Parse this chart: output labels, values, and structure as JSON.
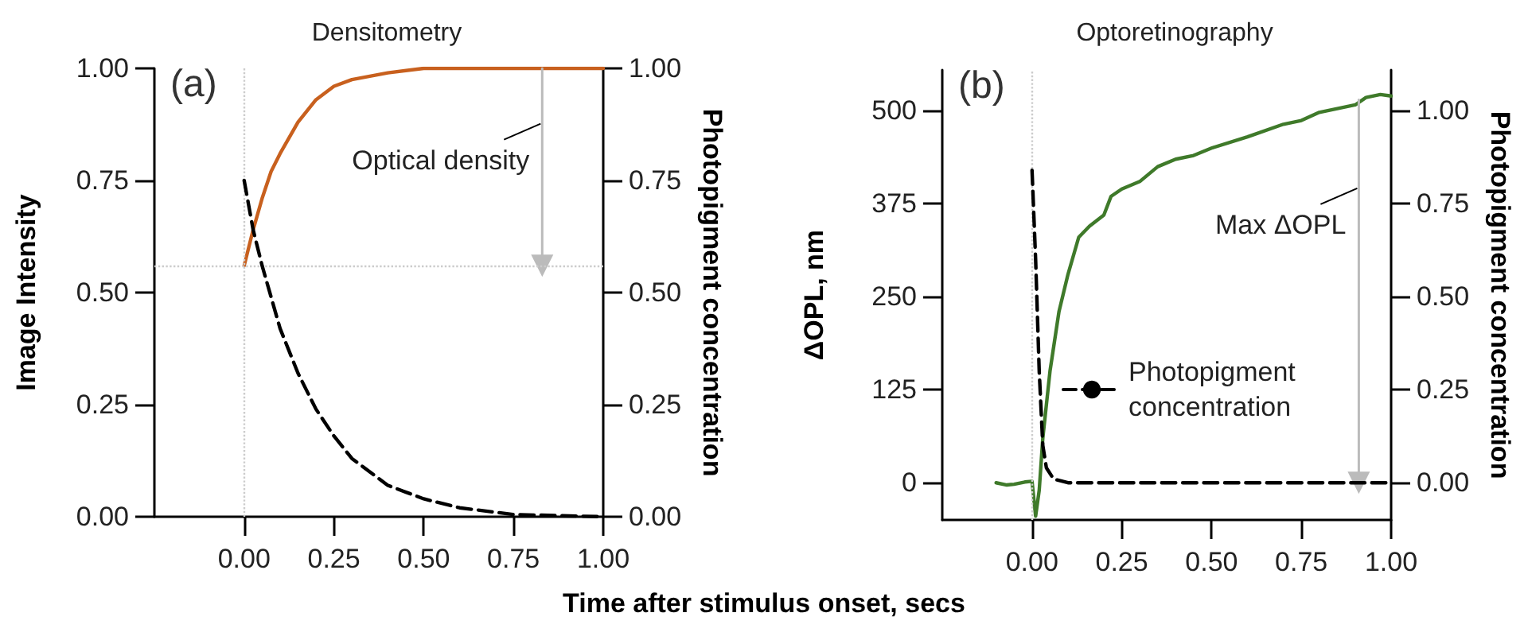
{
  "chart_data": [
    {
      "type": "line",
      "title": "Densitometry",
      "xlabel": "Time after stimulus onset, secs",
      "ylabel": "Image Intensity",
      "y2label": "Photopigment concentration",
      "xlim": [
        -0.25,
        1.0
      ],
      "xticks": [
        {
          "value": 0,
          "label": "0.00"
        },
        {
          "value": 0.25,
          "label": "0.25"
        },
        {
          "value": 0.5,
          "label": "0.50"
        },
        {
          "value": 0.75,
          "label": "0.75"
        },
        {
          "value": 1,
          "label": "1.00"
        }
      ],
      "ylim": [
        0,
        1
      ],
      "yticks": [
        {
          "value": 0,
          "label": "0.00"
        },
        {
          "value": 0.25,
          "label": "0.25"
        },
        {
          "value": 0.5,
          "label": "0.50"
        },
        {
          "value": 0.75,
          "label": "0.75"
        },
        {
          "value": 1,
          "label": "1.00"
        }
      ],
      "y2lim": [
        0,
        1
      ],
      "y2ticks": [
        {
          "value": 0,
          "label": "0.00"
        },
        {
          "value": 0.25,
          "label": "0.25"
        },
        {
          "value": 0.5,
          "label": "0.50"
        },
        {
          "value": 0.75,
          "label": "0.75"
        },
        {
          "value": 1,
          "label": "1.00"
        }
      ],
      "series": [
        {
          "color": "#c8601e",
          "line_style": "solid",
          "x": [
            0,
            0.025,
            0.05,
            0.075,
            0.1,
            0.15,
            0.2,
            0.25,
            0.3,
            0.4,
            0.5,
            0.75,
            1.0
          ],
          "values": [
            0.56,
            0.64,
            0.71,
            0.77,
            0.81,
            0.88,
            0.93,
            0.96,
            0.975,
            0.99,
            1.0,
            1.0,
            1.0
          ]
        },
        {
          "color": "#bbbbbb",
          "line_style": "solid",
          "marker": "triangle",
          "x": [
            0.83,
            0.83
          ],
          "values": [
            1.0,
            0.56
          ]
        },
        {
          "color": "#000000",
          "line_style": "dashed",
          "axis": "y2",
          "x": [
            0,
            0.025,
            0.05,
            0.1,
            0.15,
            0.2,
            0.25,
            0.3,
            0.4,
            0.5,
            0.6,
            0.75,
            1.0
          ],
          "values": [
            0.75,
            0.64,
            0.56,
            0.42,
            0.32,
            0.24,
            0.18,
            0.13,
            0.07,
            0.04,
            0.02,
            0.005,
            0.0
          ]
        }
      ],
      "ref_lines": [
        {
          "axis": "x",
          "value": 0,
          "color": "#cccccc",
          "line_style": "dotted"
        },
        {
          "axis": "y",
          "value": 0.56,
          "color": "#cccccc",
          "line_style": "dotted"
        }
      ],
      "annotations": [
        "(a)",
        {
          "text": "Optical density",
          "x": 0.83,
          "y": 0.88
        }
      ],
      "marker": "none",
      "grid": false,
      "legend": false
    },
    {
      "type": "line",
      "title": "Optoretinography",
      "ylabel": "ΔOPL, nm",
      "y2label": "Photopigment concentration",
      "xlim": [
        -0.25,
        1.0
      ],
      "xticks": [
        {
          "value": 0,
          "label": "0.00"
        },
        {
          "value": 0.25,
          "label": "0.25"
        },
        {
          "value": 0.5,
          "label": "0.50"
        },
        {
          "value": 0.75,
          "label": "0.75"
        },
        {
          "value": 1,
          "label": "1.00"
        }
      ],
      "ylim": [
        -50,
        555
      ],
      "yticks": [
        0,
        125,
        250,
        375,
        500
      ],
      "y2lim": [
        -0.1,
        1.11
      ],
      "y2ticks": [
        {
          "value": 0,
          "label": "0.00"
        },
        {
          "value": 0.25,
          "label": "0.25"
        },
        {
          "value": 0.5,
          "label": "0.50"
        },
        {
          "value": 0.75,
          "label": "0.75"
        },
        {
          "value": 1,
          "label": "1.00"
        }
      ],
      "series": [
        {
          "color": "#3f7a2a",
          "line_style": "solid",
          "x": [
            -0.1,
            -0.07,
            -0.05,
            -0.02,
            0,
            0.01,
            0.02,
            0.03,
            0.05,
            0.075,
            0.1,
            0.13,
            0.16,
            0.2,
            0.22,
            0.25,
            0.3,
            0.35,
            0.4,
            0.45,
            0.5,
            0.6,
            0.7,
            0.75,
            0.8,
            0.9,
            0.93,
            0.97,
            1.0
          ],
          "values": [
            0,
            -3,
            -2,
            1,
            2,
            -45,
            -10,
            60,
            150,
            230,
            280,
            330,
            345,
            360,
            385,
            395,
            405,
            425,
            435,
            440,
            450,
            465,
            482,
            487,
            498,
            508,
            518,
            522,
            520
          ]
        },
        {
          "color": "#bbbbbb",
          "line_style": "solid",
          "marker": "triangle",
          "x": [
            0.91,
            0.91
          ],
          "values": [
            515,
            0
          ]
        },
        {
          "name": "Photopigment concentration",
          "color": "#000000",
          "line_style": "dashed",
          "axis": "y2",
          "x": [
            0,
            0.01,
            0.02,
            0.03,
            0.04,
            0.06,
            0.1,
            1.0
          ],
          "values": [
            0.84,
            0.6,
            0.3,
            0.1,
            0.04,
            0.01,
            0,
            0
          ]
        }
      ],
      "ref_lines": [
        {
          "axis": "x",
          "value": 0,
          "color": "#cccccc",
          "line_style": "dotted"
        }
      ],
      "annotations": [
        "(b)",
        {
          "text": "Max ΔOPL",
          "x": 0.91,
          "y": 398
        }
      ],
      "marker": "none",
      "grid": false,
      "legend": "bottom right"
    }
  ]
}
